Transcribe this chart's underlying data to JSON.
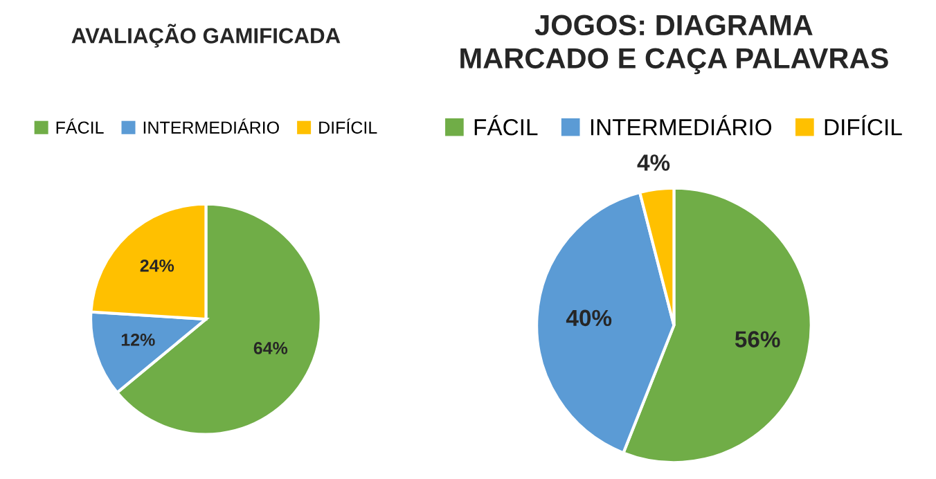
{
  "chart_data": [
    {
      "type": "pie",
      "title": "AVALIAÇÃO GAMIFICADA",
      "categories": [
        "FÁCIL",
        "INTERMEDIÁRIO",
        "DIFÍCIL"
      ],
      "values": [
        64,
        12,
        24
      ],
      "colors": [
        "#70ad47",
        "#5b9bd5",
        "#ffc000"
      ],
      "value_labels": [
        "64%",
        "12%",
        "24%"
      ],
      "legend": "top"
    },
    {
      "type": "pie",
      "title": "JOGOS: DIAGRAMA\nMARCADO E CAÇA PALAVRAS",
      "categories": [
        "FÁCIL",
        "INTERMEDIÁRIO",
        "DIFÍCIL"
      ],
      "values": [
        56,
        40,
        4
      ],
      "colors": [
        "#70ad47",
        "#5b9bd5",
        "#ffc000"
      ],
      "value_labels": [
        "56%",
        "40%",
        "4%"
      ],
      "legend": "top"
    }
  ]
}
